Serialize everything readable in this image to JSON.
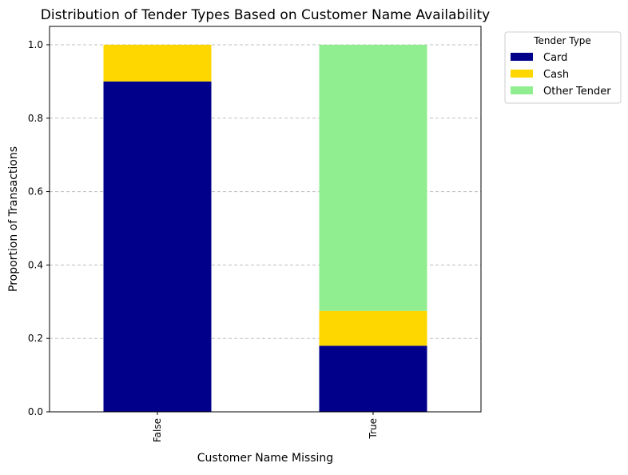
{
  "chart_data": {
    "type": "bar",
    "stacked": true,
    "title": "Distribution of Tender Types Based on Customer Name Availability",
    "xlabel": "Customer Name Missing",
    "ylabel": "Proportion of Transactions",
    "categories": [
      "False",
      "True"
    ],
    "series": [
      {
        "name": "Card",
        "color": "#00008b",
        "values": [
          0.9,
          0.18
        ]
      },
      {
        "name": "Cash",
        "color": "#ffd700",
        "values": [
          0.1,
          0.095
        ]
      },
      {
        "name": "Other Tender",
        "color": "#90ee90",
        "values": [
          0.0,
          0.725
        ]
      }
    ],
    "ylim": [
      0,
      1.05
    ],
    "yticks": [
      "0.0",
      "0.2",
      "0.4",
      "0.6",
      "0.8",
      "1.0"
    ],
    "ytick_values": [
      0.0,
      0.2,
      0.4,
      0.6,
      0.8,
      1.0
    ],
    "grid": "y-dashed",
    "legend": {
      "title": "Tender Type",
      "placement": "outside-top-right"
    }
  }
}
